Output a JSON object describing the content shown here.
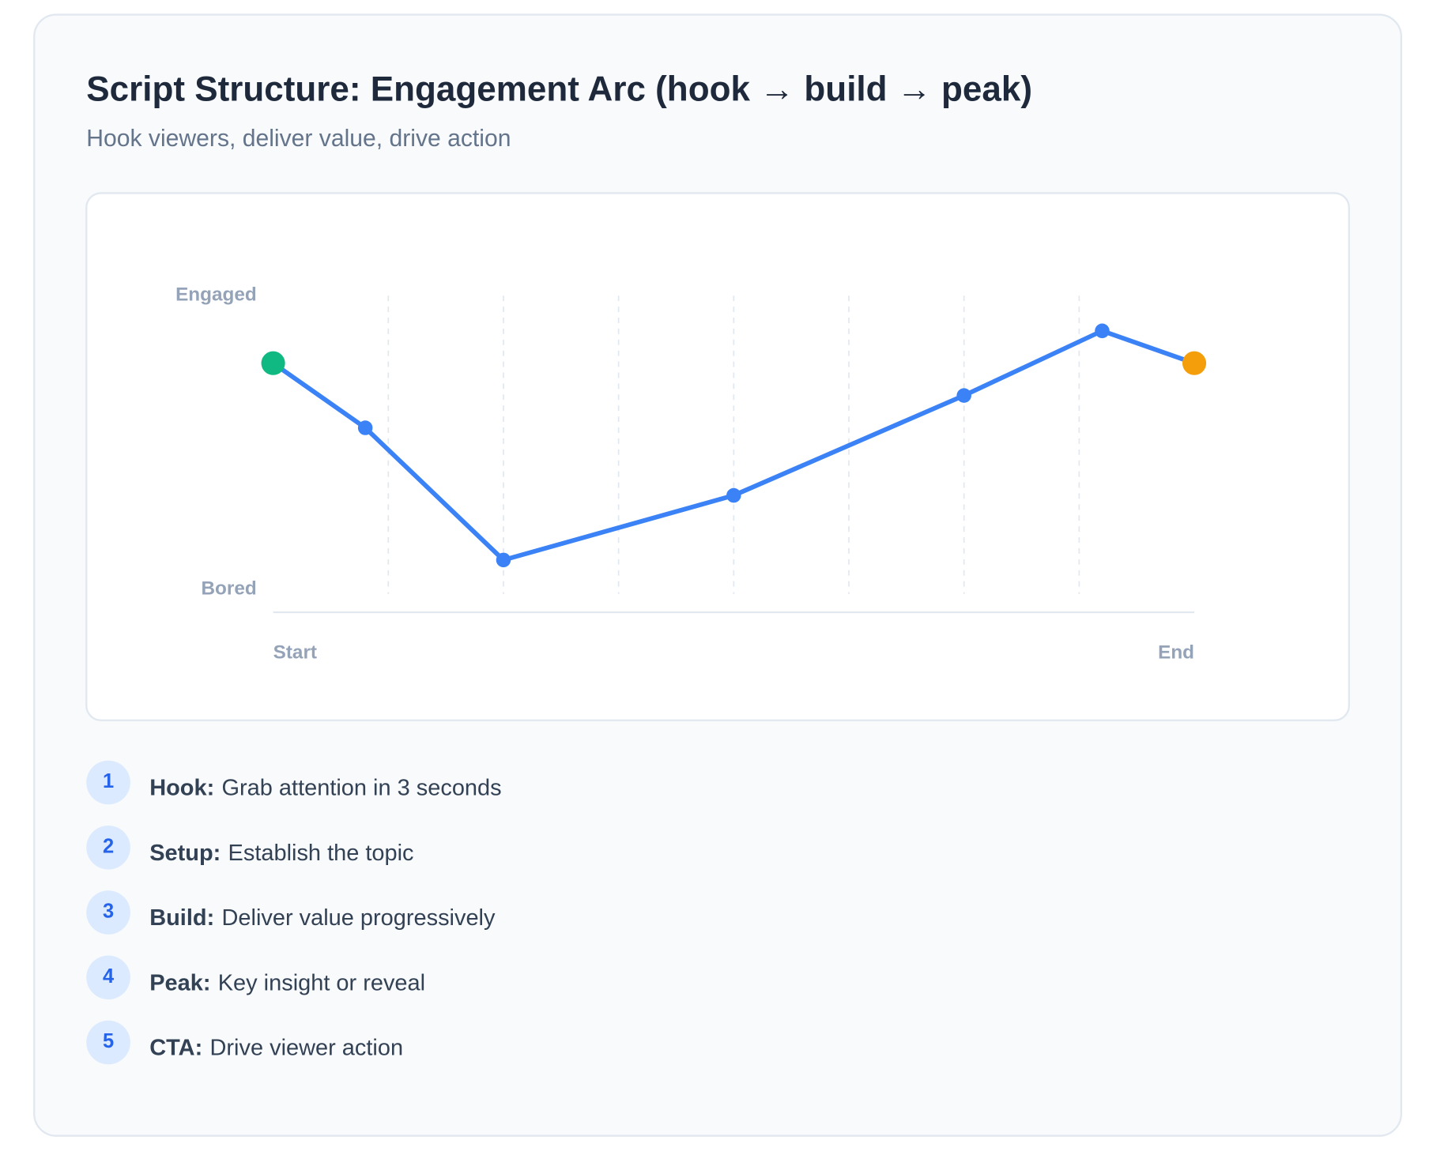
{
  "chart_data": {
    "type": "line",
    "title": "Script Structure: Engagement Arc (hook → build → peak)",
    "subtitle": "Hook viewers, deliver value, drive action",
    "x": [
      0,
      10,
      25,
      50,
      75,
      90,
      100
    ],
    "series": [
      {
        "color": "#3b82f6",
        "values": [
          77,
          55,
          10,
          32,
          66,
          88,
          77
        ],
        "point_colors": [
          "#10b981",
          "#3b82f6",
          "#3b82f6",
          "#3b82f6",
          "#3b82f6",
          "#3b82f6",
          "#f59e0b"
        ]
      }
    ],
    "xlim": [
      0,
      100
    ],
    "ylim": [
      0,
      100
    ],
    "xticks": [
      {
        "value": 0,
        "label": "Start"
      },
      {
        "value": 100,
        "label": "End"
      }
    ],
    "yticks": [
      {
        "value": 100,
        "label": "Engaged"
      },
      {
        "value": 0,
        "label": "Bored"
      }
    ],
    "vlines": [
      12.5,
      25,
      37.5,
      50,
      62.5,
      75,
      87.5
    ]
  },
  "steps": [
    {
      "number": 1,
      "label": "Hook:",
      "text": "Grab attention in 3 seconds"
    },
    {
      "number": 2,
      "label": "Setup:",
      "text": "Establish the topic"
    },
    {
      "number": 3,
      "label": "Build:",
      "text": "Deliver value progressively"
    },
    {
      "number": 4,
      "label": "Peak:",
      "text": "Key insight or reveal"
    },
    {
      "number": 5,
      "label": "CTA:",
      "text": "Drive viewer action"
    }
  ]
}
